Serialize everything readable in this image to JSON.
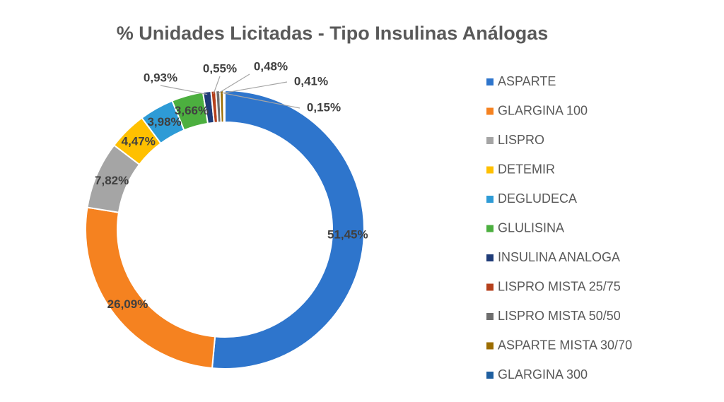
{
  "chart_data": {
    "type": "pie",
    "subtype": "doughnut",
    "title": "% Unidades Licitadas - Tipo Insulinas Análogas",
    "legend_position": "right",
    "categories": [
      "ASPARTE",
      "GLARGINA 100",
      "LISPRO",
      "DETEMIR",
      "DEGLUDECA",
      "GLULISINA",
      "INSULINA ANALOGA",
      "LISPRO MISTA 25/75",
      "LISPRO MISTA 50/50",
      "ASPARTE MISTA 30/70",
      "GLARGINA 300"
    ],
    "values": [
      51.45,
      26.09,
      7.82,
      4.47,
      3.98,
      3.66,
      0.93,
      0.55,
      0.48,
      0.41,
      0.15
    ],
    "labels": [
      "51,45%",
      "26,09%",
      "7,82%",
      "4,47%",
      "3,98%",
      "3,66%",
      "0,93%",
      "0,55%",
      "0,48%",
      "0,41%",
      "0,15%"
    ],
    "colors": [
      "#2E75CC",
      "#F58220",
      "#A5A5A5",
      "#FFC000",
      "#2E9BD6",
      "#4CAF3F",
      "#1F3C78",
      "#B5401C",
      "#6E6E6E",
      "#9C6D00",
      "#1F5FA0"
    ]
  }
}
